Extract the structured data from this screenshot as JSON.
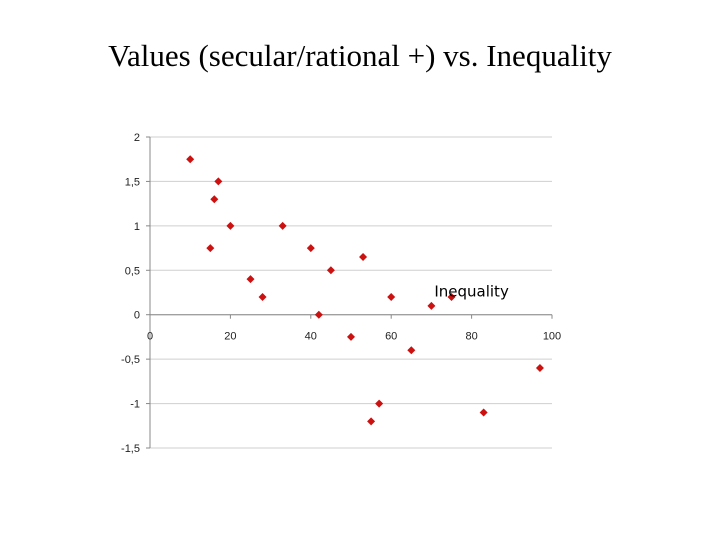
{
  "slide": {
    "title": "Values (secular/rational +) vs. Inequality"
  },
  "chart_data": {
    "type": "scatter",
    "title": "Values (secular/rational +) vs. Inequality",
    "xlabel": "Inequality",
    "ylabel": "",
    "xlim": [
      0,
      100
    ],
    "ylim": [
      -1.5,
      2
    ],
    "x_ticks": [
      0,
      20,
      40,
      60,
      80,
      100
    ],
    "x_tick_labels": [
      "0",
      "20",
      "40",
      "60",
      "80",
      "100"
    ],
    "y_ticks": [
      2,
      1.5,
      1,
      0.5,
      0,
      -0.5,
      -1,
      -1.5
    ],
    "y_tick_labels": [
      "2",
      "1,5",
      "1",
      "0,5",
      "0",
      "-0,5",
      "-1",
      "-1,5"
    ],
    "grid": {
      "horizontal": true,
      "vertical": false
    },
    "marker_color": "#cc1111",
    "marker": "diamond",
    "points": [
      {
        "x": 10,
        "y": 1.75
      },
      {
        "x": 17,
        "y": 1.5
      },
      {
        "x": 16,
        "y": 1.3
      },
      {
        "x": 20,
        "y": 1.0
      },
      {
        "x": 15,
        "y": 0.75
      },
      {
        "x": 25,
        "y": 0.4
      },
      {
        "x": 28,
        "y": 0.2
      },
      {
        "x": 33,
        "y": 1.0
      },
      {
        "x": 40,
        "y": 0.75
      },
      {
        "x": 45,
        "y": 0.5
      },
      {
        "x": 42,
        "y": 0.0
      },
      {
        "x": 53,
        "y": 0.65
      },
      {
        "x": 50,
        "y": -0.25
      },
      {
        "x": 60,
        "y": 0.2
      },
      {
        "x": 70,
        "y": 0.1
      },
      {
        "x": 75,
        "y": 0.2
      },
      {
        "x": 65,
        "y": -0.4
      },
      {
        "x": 57,
        "y": -1.0
      },
      {
        "x": 55,
        "y": -1.2
      },
      {
        "x": 83,
        "y": -1.1
      },
      {
        "x": 97,
        "y": -0.6
      }
    ]
  }
}
